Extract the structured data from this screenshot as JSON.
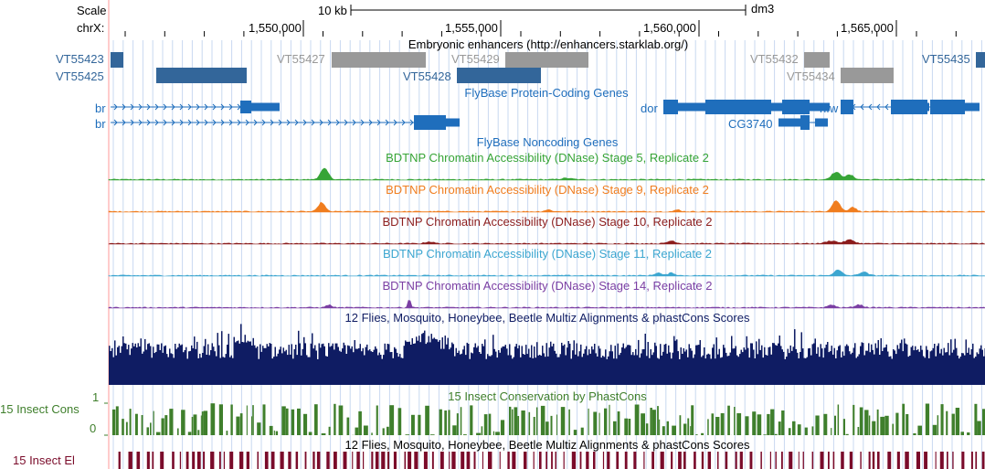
{
  "colors": {
    "gene": "#1f6ebc",
    "enh_blue": "#33669a",
    "enh_gray": "#999999",
    "stage5": "#36a436",
    "stage9": "#f07d1e",
    "stage10": "#8b1c1c",
    "stage11": "#3ca6d0",
    "stage14": "#7a3ea3",
    "multiz": "#0f1c63",
    "phastcons": "#3f7f2c",
    "elements": "#7a0b2a",
    "guide": "#c8d8f0",
    "leftline": "#ff9999"
  },
  "scale": {
    "label": "Scale",
    "bar": "10 kb",
    "assembly": "dm3"
  },
  "ruler": {
    "chrom": "chrX:",
    "ticks": [
      "1,550,000",
      "1,555,000",
      "1,560,000",
      "1,565,000"
    ]
  },
  "enhancers": {
    "title": "Embryonic enhancers (http://enhancers.starklab.org/)",
    "items": [
      {
        "label": "VT55423",
        "color": "blue"
      },
      {
        "label": "VT55425",
        "color": "blue"
      },
      {
        "label": "VT55427",
        "color": "gray"
      },
      {
        "label": "VT55429",
        "color": "gray"
      },
      {
        "label": "VT55428",
        "color": "blue"
      },
      {
        "label": "VT55432",
        "color": "gray"
      },
      {
        "label": "VT55434",
        "color": "gray"
      },
      {
        "label": "VT55435",
        "color": "blue"
      }
    ]
  },
  "genes": {
    "title": "FlyBase Protein-Coding Genes",
    "items": [
      {
        "label": "br"
      },
      {
        "label": "br"
      },
      {
        "label": "dor"
      },
      {
        "label": "CG3740"
      },
      {
        "label": "hfw"
      }
    ]
  },
  "noncoding": {
    "title": "FlyBase Noncoding Genes"
  },
  "dnase": [
    {
      "title": "BDTNP Chromatin Accessibility (DNase) Stage 5, Replicate 2",
      "color": "stage5"
    },
    {
      "title": "BDTNP Chromatin Accessibility (DNase) Stage 9, Replicate 2",
      "color": "stage9"
    },
    {
      "title": "BDTNP Chromatin Accessibility (DNase) Stage 10, Replicate 2",
      "color": "stage10"
    },
    {
      "title": "BDTNP Chromatin Accessibility (DNase) Stage 11, Replicate 2",
      "color": "stage11"
    },
    {
      "title": "BDTNP Chromatin Accessibility (DNase) Stage 14, Replicate 2",
      "color": "stage14"
    }
  ],
  "multiz": {
    "title": "12 Flies, Mosquito, Honeybee, Beetle Multiz Alignments & phastCons Scores"
  },
  "phastcons": {
    "title": "15 Insect Conservation by PhastCons",
    "side_label": "15 Insect Cons",
    "max": "1",
    "min": "0"
  },
  "elements": {
    "title": "12 Flies, Mosquito, Honeybee, Beetle Multiz Alignments & phastCons Scores",
    "side_label": "15 Insect El"
  }
}
